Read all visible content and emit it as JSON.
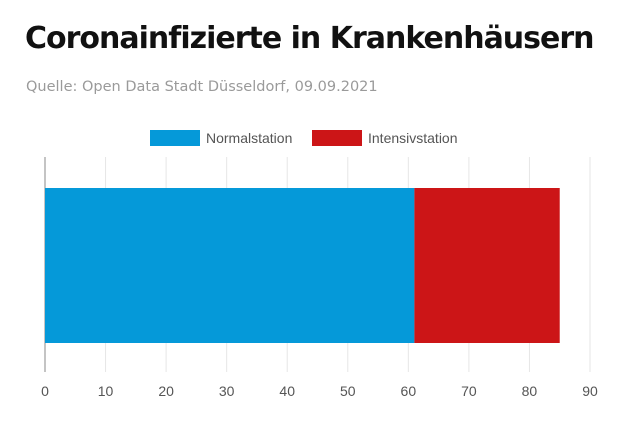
{
  "title": "Coronainfizierte in Krankenhäusern",
  "subtitle": "Quelle: Open Data Stadt Düsseldorf, 09.09.2021",
  "chart_data": {
    "type": "bar",
    "orientation": "horizontal",
    "stacked": true,
    "categories": [
      ""
    ],
    "series": [
      {
        "name": "Normalstation",
        "values": [
          61
        ],
        "color": "#0599d9"
      },
      {
        "name": "Intensivstation",
        "values": [
          24
        ],
        "color": "#cc1517"
      }
    ],
    "xlim": [
      0,
      90
    ],
    "xticks": [
      0,
      10,
      20,
      30,
      40,
      50,
      60,
      70,
      80,
      90
    ],
    "grid": true,
    "legend": "top-center"
  }
}
